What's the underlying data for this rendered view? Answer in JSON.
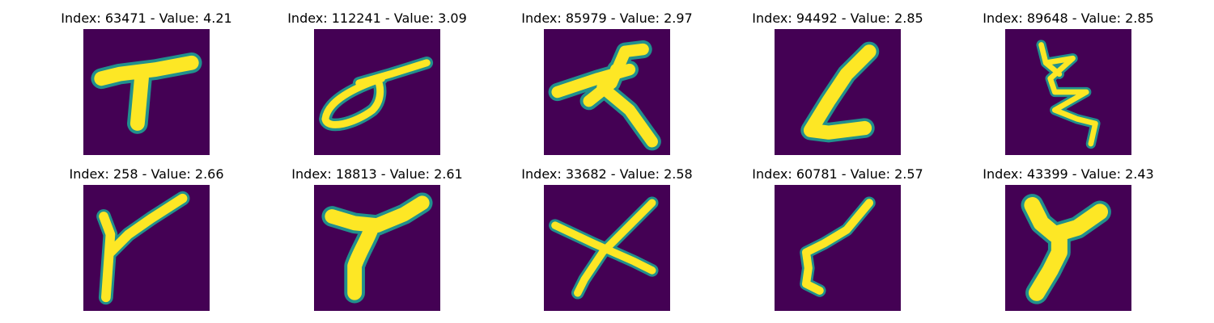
{
  "colormap": {
    "background": "#440154",
    "edge": "#21908d",
    "mid": "#5ec962",
    "stroke": "#fde725"
  },
  "panels": [
    {
      "title": "Index: 63471 - Value: 4.21",
      "glyph": "T-shape"
    },
    {
      "title": "Index: 112241 - Value: 3.09",
      "glyph": "loop-with-bar"
    },
    {
      "title": "Index: 85979 - Value: 2.97",
      "glyph": "star-triangle"
    },
    {
      "title": "Index: 94492 - Value: 2.85",
      "glyph": "L-shape"
    },
    {
      "title": "Index: 89648 - Value: 2.85",
      "glyph": "zigzag"
    },
    {
      "title": "Index: 258 - Value: 2.66",
      "glyph": "Y-slanted"
    },
    {
      "title": "Index: 18813 - Value: 2.61",
      "glyph": "Y-curved"
    },
    {
      "title": "Index: 33682 - Value: 2.58",
      "glyph": "X-shape"
    },
    {
      "title": "Index: 60781 - Value: 2.57",
      "glyph": "hook-stroke"
    },
    {
      "title": "Index: 43399 - Value: 2.43",
      "glyph": "Y-bold"
    }
  ]
}
